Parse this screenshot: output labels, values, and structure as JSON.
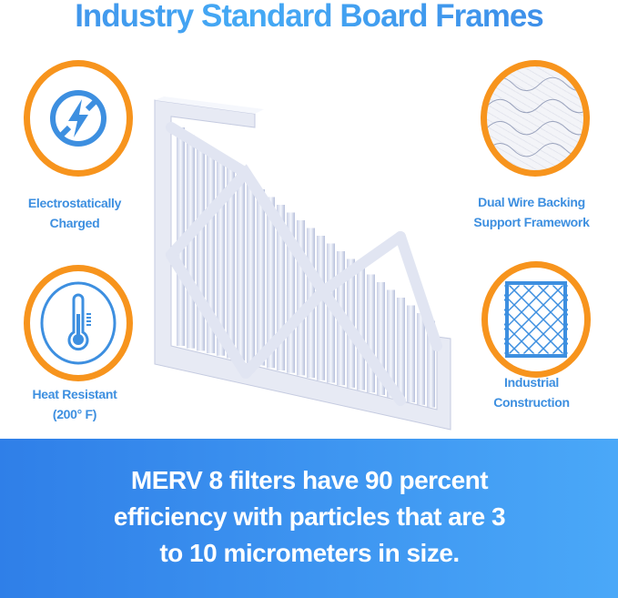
{
  "title": "Industry Standard Board Frames",
  "features": [
    {
      "label_line1": "Electrostatically",
      "label_line2": "Charged",
      "icon": "no-electricity-icon"
    },
    {
      "label_line1": "Dual Wire Backing",
      "label_line2": "Support Framework",
      "icon": "wire-mesh-photo-icon"
    },
    {
      "label_line1": "Heat Resistant",
      "label_line2": "(200° F)",
      "icon": "thermometer-icon"
    },
    {
      "label_line1": "Industrial",
      "label_line2": "Construction",
      "icon": "diamond-grid-icon"
    }
  ],
  "banner": {
    "line1": "MERV 8 filters have 90 percent",
    "line2": "efficiency with particles that are 3",
    "line3": "to 10 micrometers in size."
  },
  "colors": {
    "accent_orange": "#f7941d",
    "brand_blue": "#3d8fe0",
    "banner_start": "#2f7fe8",
    "banner_end": "#4aa8f8"
  }
}
